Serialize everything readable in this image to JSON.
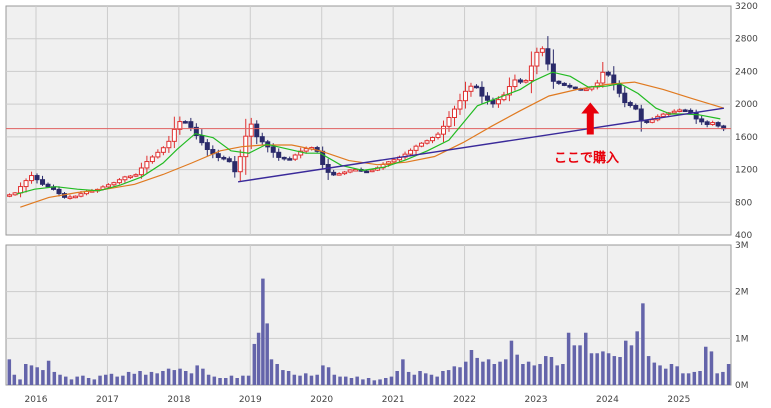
{
  "chart_data": {
    "type": "candlestick",
    "grid": true,
    "price_axis": {
      "ticks": [
        400,
        800,
        1200,
        1600,
        2000,
        2400,
        2800,
        3200
      ],
      "range": [
        400,
        3200
      ],
      "position": "right"
    },
    "volume_axis": {
      "ticks": [
        "0M",
        "1M",
        "2M",
        "3M"
      ],
      "values": [
        0,
        1,
        2,
        3
      ],
      "range": [
        0,
        3
      ],
      "position": "right"
    },
    "x_axis": {
      "labels": [
        "2016",
        "2017",
        "2018",
        "2019",
        "2020",
        "2021",
        "2022",
        "2023",
        "2024",
        "2025"
      ],
      "range": [
        2015.6,
        2025.75
      ]
    },
    "horizontal_line": {
      "value": 1700,
      "color": "#e06060"
    },
    "annotation": {
      "text": "ここで購入",
      "arrow_x": 2023.78,
      "arrow_tip_value": 2020,
      "color": "#e8000b"
    },
    "colors": {
      "up": "#e03030",
      "down": "#2a2a6a",
      "volume": "#6464aa",
      "ma_short": "#22bb22",
      "ma_long": "#e07a20",
      "trendline": "#3a2a9a",
      "panel": "#f0f0f0",
      "grid": "#cccccc"
    },
    "price_path": [
      [
        2015.6,
        880
      ],
      [
        2015.75,
        900
      ],
      [
        2015.9,
        1050
      ],
      [
        2016.0,
        1130
      ],
      [
        2016.15,
        1020
      ],
      [
        2016.3,
        960
      ],
      [
        2016.45,
        860
      ],
      [
        2016.6,
        870
      ],
      [
        2016.75,
        930
      ],
      [
        2016.9,
        950
      ],
      [
        2017.0,
        990
      ],
      [
        2017.15,
        1040
      ],
      [
        2017.3,
        1110
      ],
      [
        2017.45,
        1130
      ],
      [
        2017.6,
        1290
      ],
      [
        2017.75,
        1400
      ],
      [
        2017.9,
        1510
      ],
      [
        2018.0,
        1700
      ],
      [
        2018.1,
        1820
      ],
      [
        2018.2,
        1750
      ],
      [
        2018.3,
        1620
      ],
      [
        2018.45,
        1450
      ],
      [
        2018.6,
        1350
      ],
      [
        2018.75,
        1320
      ],
      [
        2018.85,
        1160
      ],
      [
        2018.95,
        1450
      ],
      [
        2019.05,
        1800
      ],
      [
        2019.15,
        1600
      ],
      [
        2019.3,
        1480
      ],
      [
        2019.45,
        1350
      ],
      [
        2019.6,
        1320
      ],
      [
        2019.75,
        1420
      ],
      [
        2019.9,
        1480
      ],
      [
        2020.0,
        1420
      ],
      [
        2020.1,
        1200
      ],
      [
        2020.2,
        1130
      ],
      [
        2020.35,
        1160
      ],
      [
        2020.5,
        1210
      ],
      [
        2020.65,
        1170
      ],
      [
        2020.8,
        1200
      ],
      [
        2020.95,
        1280
      ],
      [
        2021.1,
        1330
      ],
      [
        2021.25,
        1400
      ],
      [
        2021.4,
        1500
      ],
      [
        2021.55,
        1560
      ],
      [
        2021.7,
        1640
      ],
      [
        2021.85,
        1850
      ],
      [
        2022.0,
        2050
      ],
      [
        2022.1,
        2200
      ],
      [
        2022.2,
        2240
      ],
      [
        2022.3,
        2100
      ],
      [
        2022.45,
        2000
      ],
      [
        2022.6,
        2100
      ],
      [
        2022.75,
        2300
      ],
      [
        2022.9,
        2250
      ],
      [
        2023.0,
        2480
      ],
      [
        2023.12,
        2740
      ],
      [
        2023.2,
        2560
      ],
      [
        2023.3,
        2280
      ],
      [
        2023.45,
        2230
      ],
      [
        2023.6,
        2190
      ],
      [
        2023.75,
        2180
      ],
      [
        2023.9,
        2230
      ],
      [
        2024.0,
        2400
      ],
      [
        2024.08,
        2350
      ],
      [
        2024.18,
        2200
      ],
      [
        2024.3,
        2020
      ],
      [
        2024.45,
        1950
      ],
      [
        2024.55,
        1760
      ],
      [
        2024.65,
        1790
      ],
      [
        2024.8,
        1870
      ],
      [
        2024.95,
        1900
      ],
      [
        2025.05,
        1930
      ],
      [
        2025.2,
        1920
      ],
      [
        2025.3,
        1820
      ],
      [
        2025.45,
        1750
      ],
      [
        2025.55,
        1780
      ],
      [
        2025.65,
        1700
      ]
    ],
    "ma_short": [
      [
        2015.75,
        900
      ],
      [
        2016.0,
        960
      ],
      [
        2016.3,
        990
      ],
      [
        2016.6,
        960
      ],
      [
        2016.9,
        940
      ],
      [
        2017.2,
        1010
      ],
      [
        2017.5,
        1110
      ],
      [
        2017.8,
        1280
      ],
      [
        2018.0,
        1450
      ],
      [
        2018.25,
        1640
      ],
      [
        2018.5,
        1590
      ],
      [
        2018.75,
        1430
      ],
      [
        2019.0,
        1400
      ],
      [
        2019.25,
        1510
      ],
      [
        2019.5,
        1460
      ],
      [
        2019.8,
        1400
      ],
      [
        2020.0,
        1400
      ],
      [
        2020.3,
        1250
      ],
      [
        2020.6,
        1190
      ],
      [
        2020.9,
        1230
      ],
      [
        2021.2,
        1320
      ],
      [
        2021.5,
        1430
      ],
      [
        2021.8,
        1560
      ],
      [
        2022.0,
        1770
      ],
      [
        2022.2,
        1980
      ],
      [
        2022.5,
        2080
      ],
      [
        2022.8,
        2180
      ],
      [
        2023.0,
        2290
      ],
      [
        2023.25,
        2390
      ],
      [
        2023.5,
        2340
      ],
      [
        2023.75,
        2210
      ],
      [
        2024.0,
        2220
      ],
      [
        2024.2,
        2250
      ],
      [
        2024.45,
        2130
      ],
      [
        2024.7,
        1950
      ],
      [
        2024.9,
        1880
      ],
      [
        2025.1,
        1880
      ],
      [
        2025.3,
        1870
      ],
      [
        2025.6,
        1820
      ]
    ],
    "ma_long": [
      [
        2015.8,
        740
      ],
      [
        2016.2,
        860
      ],
      [
        2016.6,
        920
      ],
      [
        2017.0,
        960
      ],
      [
        2017.4,
        1020
      ],
      [
        2017.8,
        1140
      ],
      [
        2018.2,
        1280
      ],
      [
        2018.6,
        1430
      ],
      [
        2018.9,
        1480
      ],
      [
        2019.2,
        1500
      ],
      [
        2019.6,
        1500
      ],
      [
        2020.0,
        1430
      ],
      [
        2020.4,
        1310
      ],
      [
        2020.8,
        1260
      ],
      [
        2021.2,
        1290
      ],
      [
        2021.6,
        1360
      ],
      [
        2022.0,
        1530
      ],
      [
        2022.4,
        1730
      ],
      [
        2022.8,
        1920
      ],
      [
        2023.2,
        2100
      ],
      [
        2023.6,
        2180
      ],
      [
        2024.0,
        2240
      ],
      [
        2024.4,
        2270
      ],
      [
        2024.8,
        2180
      ],
      [
        2025.2,
        2070
      ],
      [
        2025.65,
        1950
      ]
    ],
    "trendline": [
      [
        2018.85,
        1050
      ],
      [
        2025.65,
        1950
      ]
    ],
    "volume": [
      [
        2015.65,
        0.55
      ],
      [
        2015.72,
        0.22
      ],
      [
        2015.8,
        0.12
      ],
      [
        2015.88,
        0.45
      ],
      [
        2015.96,
        0.42
      ],
      [
        2016.04,
        0.38
      ],
      [
        2016.12,
        0.32
      ],
      [
        2016.2,
        0.52
      ],
      [
        2016.28,
        0.28
      ],
      [
        2016.36,
        0.22
      ],
      [
        2016.44,
        0.18
      ],
      [
        2016.52,
        0.12
      ],
      [
        2016.6,
        0.18
      ],
      [
        2016.68,
        0.2
      ],
      [
        2016.76,
        0.15
      ],
      [
        2016.84,
        0.12
      ],
      [
        2016.92,
        0.2
      ],
      [
        2017.0,
        0.22
      ],
      [
        2017.08,
        0.24
      ],
      [
        2017.16,
        0.18
      ],
      [
        2017.24,
        0.2
      ],
      [
        2017.32,
        0.28
      ],
      [
        2017.4,
        0.24
      ],
      [
        2017.48,
        0.3
      ],
      [
        2017.56,
        0.22
      ],
      [
        2017.64,
        0.28
      ],
      [
        2017.72,
        0.25
      ],
      [
        2017.8,
        0.3
      ],
      [
        2017.88,
        0.35
      ],
      [
        2017.96,
        0.32
      ],
      [
        2018.04,
        0.35
      ],
      [
        2018.12,
        0.3
      ],
      [
        2018.2,
        0.25
      ],
      [
        2018.28,
        0.42
      ],
      [
        2018.36,
        0.35
      ],
      [
        2018.44,
        0.22
      ],
      [
        2018.52,
        0.18
      ],
      [
        2018.6,
        0.15
      ],
      [
        2018.68,
        0.15
      ],
      [
        2018.76,
        0.2
      ],
      [
        2018.84,
        0.15
      ],
      [
        2018.92,
        0.2
      ],
      [
        2019.0,
        0.2
      ],
      [
        2019.08,
        0.88
      ],
      [
        2019.14,
        1.12
      ],
      [
        2019.2,
        2.28
      ],
      [
        2019.26,
        1.32
      ],
      [
        2019.32,
        0.55
      ],
      [
        2019.4,
        0.45
      ],
      [
        2019.48,
        0.32
      ],
      [
        2019.56,
        0.3
      ],
      [
        2019.64,
        0.22
      ],
      [
        2019.72,
        0.2
      ],
      [
        2019.8,
        0.25
      ],
      [
        2019.88,
        0.2
      ],
      [
        2019.96,
        0.22
      ],
      [
        2020.04,
        0.42
      ],
      [
        2020.12,
        0.38
      ],
      [
        2020.2,
        0.22
      ],
      [
        2020.28,
        0.18
      ],
      [
        2020.36,
        0.18
      ],
      [
        2020.44,
        0.15
      ],
      [
        2020.52,
        0.18
      ],
      [
        2020.6,
        0.12
      ],
      [
        2020.68,
        0.15
      ],
      [
        2020.76,
        0.1
      ],
      [
        2020.84,
        0.12
      ],
      [
        2020.92,
        0.15
      ],
      [
        2021.0,
        0.18
      ],
      [
        2021.08,
        0.3
      ],
      [
        2021.16,
        0.55
      ],
      [
        2021.24,
        0.28
      ],
      [
        2021.32,
        0.22
      ],
      [
        2021.4,
        0.3
      ],
      [
        2021.48,
        0.25
      ],
      [
        2021.56,
        0.22
      ],
      [
        2021.64,
        0.18
      ],
      [
        2021.72,
        0.3
      ],
      [
        2021.8,
        0.32
      ],
      [
        2021.88,
        0.4
      ],
      [
        2021.96,
        0.38
      ],
      [
        2022.04,
        0.5
      ],
      [
        2022.12,
        0.75
      ],
      [
        2022.2,
        0.58
      ],
      [
        2022.28,
        0.5
      ],
      [
        2022.36,
        0.55
      ],
      [
        2022.44,
        0.45
      ],
      [
        2022.52,
        0.5
      ],
      [
        2022.6,
        0.55
      ],
      [
        2022.68,
        0.95
      ],
      [
        2022.76,
        0.65
      ],
      [
        2022.84,
        0.45
      ],
      [
        2022.92,
        0.5
      ],
      [
        2023.0,
        0.42
      ],
      [
        2023.08,
        0.45
      ],
      [
        2023.16,
        0.62
      ],
      [
        2023.24,
        0.6
      ],
      [
        2023.32,
        0.42
      ],
      [
        2023.4,
        0.45
      ],
      [
        2023.48,
        1.12
      ],
      [
        2023.56,
        0.85
      ],
      [
        2023.64,
        0.85
      ],
      [
        2023.72,
        1.12
      ],
      [
        2023.8,
        0.68
      ],
      [
        2023.88,
        0.68
      ],
      [
        2023.96,
        0.72
      ],
      [
        2024.04,
        0.68
      ],
      [
        2024.12,
        0.62
      ],
      [
        2024.2,
        0.6
      ],
      [
        2024.28,
        0.95
      ],
      [
        2024.36,
        0.85
      ],
      [
        2024.44,
        1.15
      ],
      [
        2024.52,
        1.75
      ],
      [
        2024.6,
        0.62
      ],
      [
        2024.68,
        0.48
      ],
      [
        2024.76,
        0.42
      ],
      [
        2024.84,
        0.35
      ],
      [
        2024.92,
        0.45
      ],
      [
        2025.0,
        0.4
      ],
      [
        2025.08,
        0.25
      ],
      [
        2025.16,
        0.25
      ],
      [
        2025.24,
        0.28
      ],
      [
        2025.32,
        0.3
      ],
      [
        2025.4,
        0.82
      ],
      [
        2025.48,
        0.72
      ],
      [
        2025.56,
        0.25
      ],
      [
        2025.64,
        0.28
      ],
      [
        2025.72,
        0.45
      ]
    ]
  }
}
